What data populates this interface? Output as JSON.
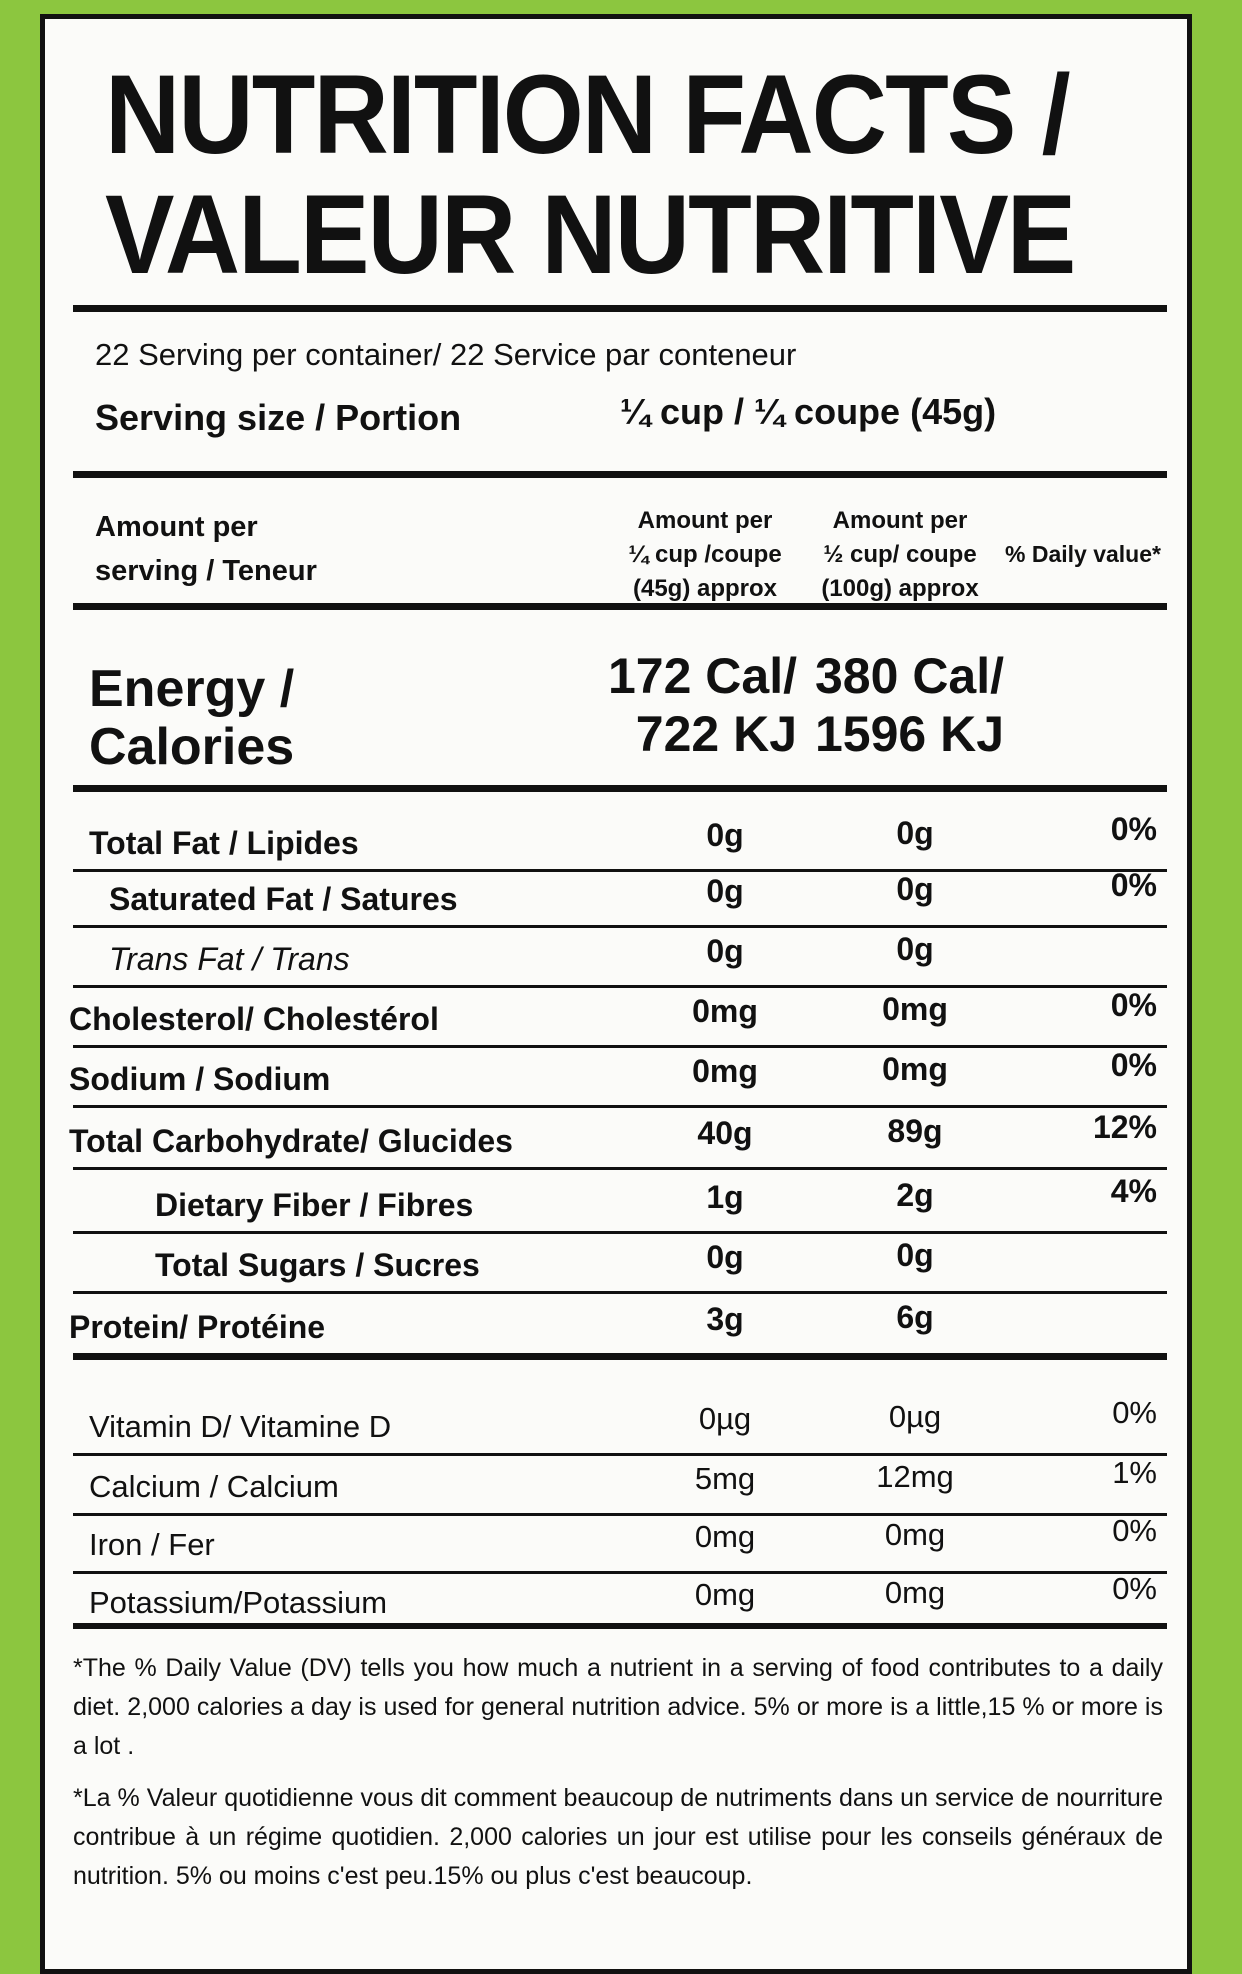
{
  "header": {
    "title_line1": "NUTRITION FACTS /",
    "title_line2": "VALEUR NUTRITIVE"
  },
  "servings": "22 Serving per container/ 22 Service par conteneur",
  "serving_size": {
    "label": "Serving size / Portion",
    "value": "¼ cup / ¼ coupe (45g)"
  },
  "columns": {
    "amount_label": [
      "Amount per",
      "serving / Teneur"
    ],
    "per_45g": [
      "Amount per",
      "¼ cup /coupe",
      "(45g) approx"
    ],
    "per_100g": [
      "Amount per",
      "½ cup/ coupe",
      "(100g) approx"
    ],
    "dv": "% Daily value*"
  },
  "energy": {
    "label": [
      "Energy /",
      "Calories"
    ],
    "per_45g": [
      "172 Cal/",
      "722 KJ"
    ],
    "per_100g": [
      "380 Cal/",
      "1596 KJ"
    ]
  },
  "nutrients": [
    {
      "name": "Total Fat / Lipides",
      "per_45g": "0g",
      "per_100g": "0g",
      "dv": "0%"
    },
    {
      "name": "Saturated Fat / Satures",
      "per_45g": "0g",
      "per_100g": "0g",
      "dv": "0%"
    },
    {
      "name": "Trans Fat / Trans",
      "per_45g": "0g",
      "per_100g": "0g"
    },
    {
      "name": "Cholesterol/ Cholestérol",
      "per_45g": "0mg",
      "per_100g": "0mg",
      "dv": "0%"
    },
    {
      "name": "Sodium / Sodium",
      "per_45g": "0mg",
      "per_100g": "0mg",
      "dv": "0%"
    },
    {
      "name": "Total Carbohydrate/ Glucides",
      "per_45g": "40g",
      "per_100g": "89g",
      "dv": "12%"
    },
    {
      "name": "Dietary Fiber  / Fibres",
      "per_45g": "1g",
      "per_100g": "2g",
      "dv": "4%"
    },
    {
      "name": "Total Sugars / Sucres",
      "per_45g": "0g",
      "per_100g": "0g"
    },
    {
      "name": "Protein/ Protéine",
      "per_45g": "3g",
      "per_100g": "6g"
    }
  ],
  "vitamins": [
    {
      "name": "Vitamin D/ Vitamine D",
      "per_45g": "0µg",
      "per_100g": "0µg",
      "dv": "0%"
    },
    {
      "name": "Calcium / Calcium",
      "per_45g": "5mg",
      "per_100g": "12mg",
      "dv": "1%"
    },
    {
      "name": "Iron / Fer",
      "per_45g": "0mg",
      "per_100g": "0mg",
      "dv": "0%"
    },
    {
      "name": "Potassium/Potassium",
      "per_45g": "0mg",
      "per_100g": "0mg",
      "dv": "0%"
    }
  ],
  "footnotes": [
    "*The % Daily Value (DV) tells you how much a nutrient in a serving of food contributes to a daily diet. 2,000 calories a day is used for general nutrition advice. 5% or more is a little,15 % or more is a lot .",
    "*La % Valeur quotidienne vous dit comment beaucoup de nutriments dans un service de nourriture contribue à un régime quotidien. 2,000 calories un jour est utilise pour les conseils généraux de nutrition. 5% ou moins c'est peu.15% ou plus c'est beaucoup."
  ]
}
